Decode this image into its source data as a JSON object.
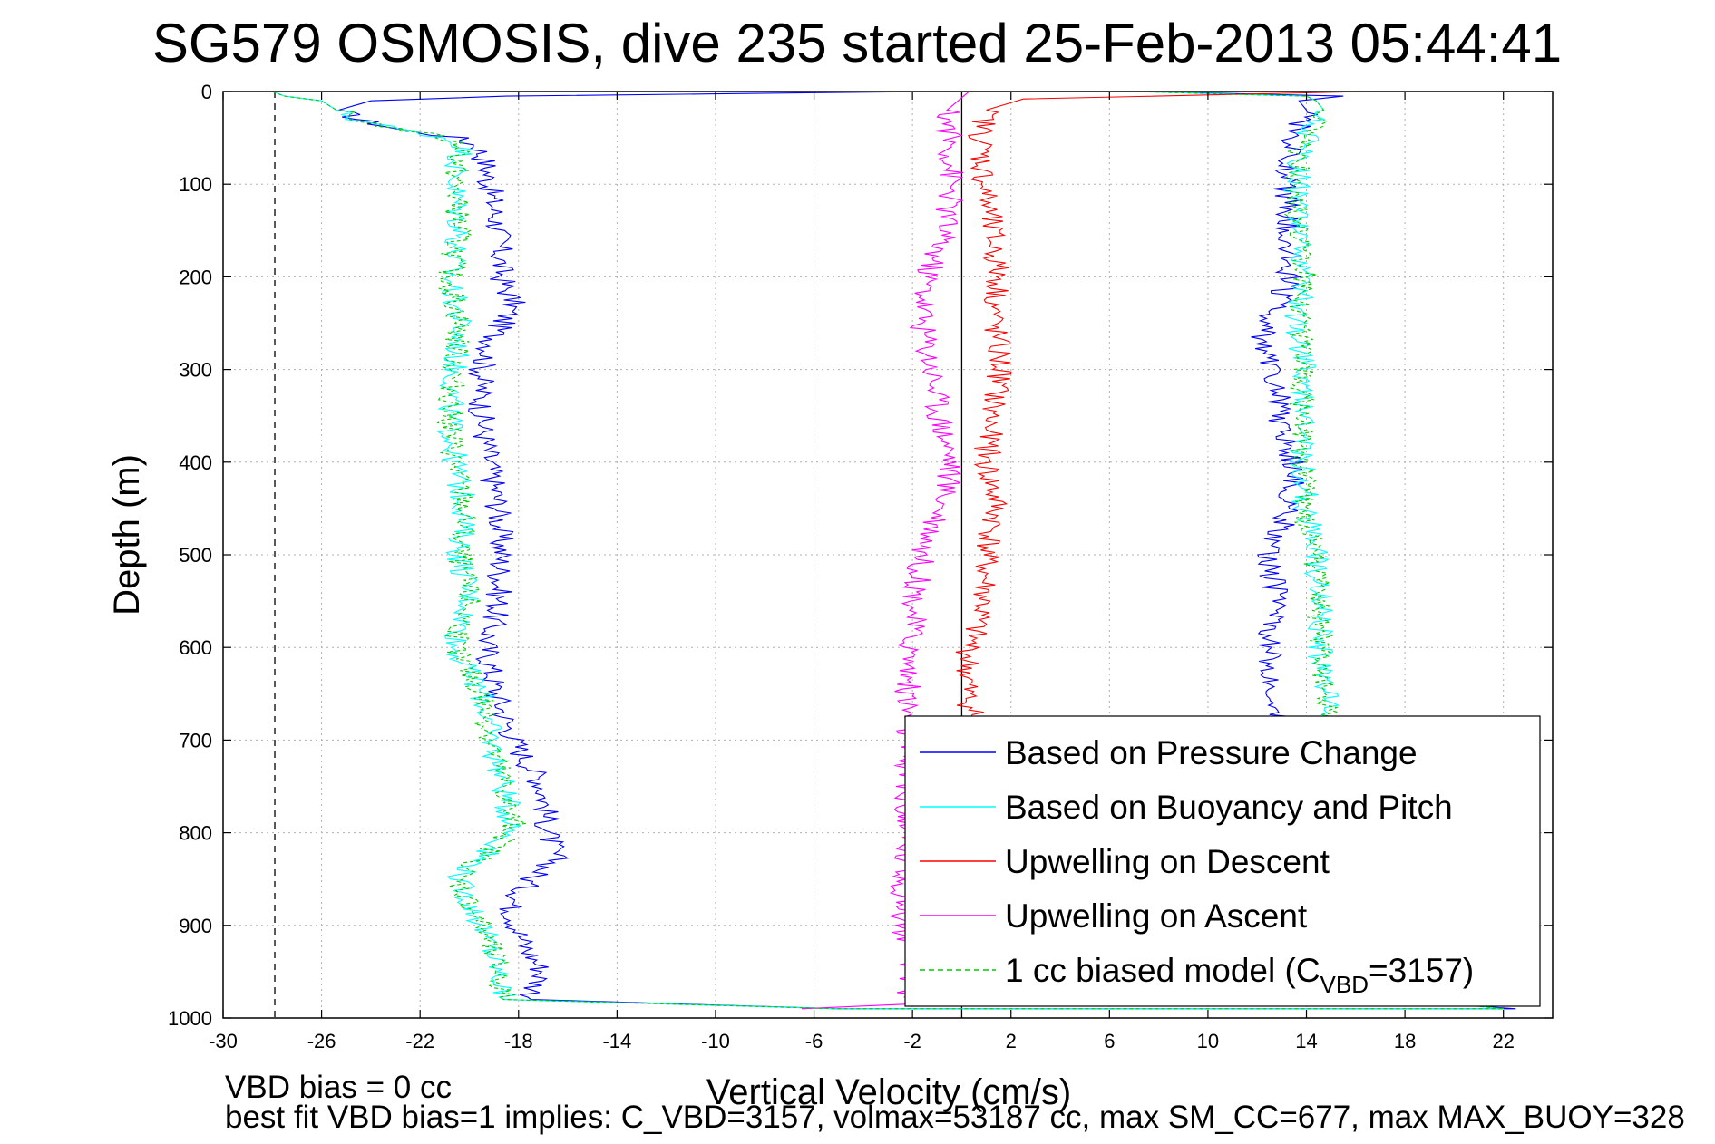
{
  "chart_data": {
    "type": "line",
    "title": "SG579 OSMOSIS, dive 235 started 25-Feb-2013 05:44:41",
    "xlabel": "Vertical Velocity (cm/s)",
    "ylabel": "Depth (m)",
    "xlim": [
      -30,
      24
    ],
    "ylim": [
      0,
      1000
    ],
    "y_reversed": true,
    "grid": true,
    "x_ticks": [
      "-30",
      "-26",
      "-22",
      "-18",
      "-14",
      "-10",
      "-6",
      "-2",
      "2",
      "6",
      "10",
      "14",
      "18",
      "22"
    ],
    "y_ticks": [
      "0",
      "100",
      "200",
      "300",
      "400",
      "500",
      "600",
      "700",
      "800",
      "900",
      "1000"
    ],
    "reference_lines": [
      {
        "x": 0,
        "style": "solid"
      },
      {
        "x": -27.9,
        "style": "dashed"
      }
    ],
    "legend_position": "bottom-right",
    "series": [
      {
        "name": "Based on Pressure Change",
        "color": "#0000ff",
        "depth": [
          0,
          5,
          10,
          20,
          30,
          40,
          50,
          60,
          80,
          100,
          150,
          200,
          230,
          260,
          300,
          350,
          400,
          450,
          500,
          550,
          600,
          650,
          700,
          750,
          800,
          830,
          850,
          880,
          920,
          950,
          980,
          990,
          990,
          980,
          950,
          900,
          850,
          800,
          750,
          700,
          650,
          600,
          550,
          500,
          450,
          400,
          350,
          300,
          270,
          250,
          200,
          150,
          100,
          60,
          40,
          20,
          10,
          5,
          0
        ],
        "velocity": [
          -1.5,
          -18.5,
          -24,
          -25.3,
          -24.5,
          -23,
          -20.5,
          -19.6,
          -19.3,
          -19.2,
          -18.8,
          -18.7,
          -18.2,
          -18.9,
          -19.5,
          -19.5,
          -19.2,
          -18.8,
          -18.7,
          -18.8,
          -19.3,
          -18.9,
          -18.2,
          -17,
          -16.8,
          -16.5,
          -17.5,
          -18.3,
          -17.8,
          -17,
          -17.5,
          -5,
          22.5,
          17,
          13,
          13.3,
          13.2,
          13.4,
          13.3,
          13.2,
          12.8,
          12.5,
          12.8,
          12.5,
          13.3,
          13.5,
          12.9,
          12.7,
          12.2,
          12.4,
          13.3,
          13.2,
          13.2,
          13.3,
          13.7,
          14,
          13.7,
          15.5,
          7.5
        ]
      },
      {
        "name": "Based on Buoyancy and Pitch",
        "color": "#00ffff",
        "depth": [
          0,
          5,
          10,
          20,
          30,
          40,
          50,
          60,
          80,
          100,
          150,
          200,
          250,
          300,
          350,
          400,
          450,
          500,
          550,
          600,
          620,
          650,
          700,
          750,
          780,
          790,
          800,
          850,
          870,
          900,
          950,
          980,
          990,
          990,
          980,
          950,
          900,
          850,
          800,
          750,
          700,
          660,
          600,
          550,
          500,
          470,
          450,
          400,
          350,
          300,
          250,
          200,
          150,
          100,
          60,
          40,
          20,
          10,
          5,
          0
        ],
        "velocity": [
          -28,
          -27.5,
          -26,
          -25.4,
          -24.6,
          -23,
          -21,
          -20.2,
          -20.5,
          -20.6,
          -20.4,
          -20.8,
          -20.4,
          -20.6,
          -20.8,
          -20.6,
          -20.2,
          -20.4,
          -20.0,
          -20.6,
          -20.2,
          -19.5,
          -19.1,
          -18.6,
          -18.4,
          -18.2,
          -18.3,
          -20.5,
          -20.1,
          -19.5,
          -18.8,
          -18.6,
          -5,
          22,
          18,
          15,
          15.1,
          15,
          14.8,
          14.7,
          14.6,
          14.8,
          14.5,
          14.6,
          14.4,
          14.1,
          14,
          13.8,
          13.8,
          13.9,
          13.6,
          13.9,
          13.7,
          13.6,
          13.8,
          14.2,
          14.7,
          14.4,
          14,
          7
        ]
      },
      {
        "name": "Upwelling on Descent",
        "color": "#ff0000",
        "depth": [
          0,
          8,
          20,
          50,
          100,
          150,
          200,
          250,
          300,
          350,
          400,
          450,
          500,
          550,
          600,
          650,
          700
        ],
        "velocity": [
          16.5,
          2.5,
          1.0,
          0.8,
          0.9,
          1.2,
          1.5,
          1.3,
          1.6,
          1.2,
          1.0,
          1.4,
          1.0,
          0.9,
          0.3,
          0.2,
          0.8
        ]
      },
      {
        "name": "Upwelling on Ascent",
        "color": "#ff00ff",
        "depth": [
          0,
          20,
          50,
          100,
          150,
          200,
          250,
          300,
          350,
          400,
          450,
          500,
          550,
          600,
          650,
          900,
          950,
          985,
          990
        ],
        "velocity": [
          0.3,
          -0.6,
          -0.5,
          -0.4,
          -0.7,
          -1.4,
          -1.6,
          -1.2,
          -0.9,
          -0.4,
          -0.8,
          -1.6,
          -1.9,
          -2.1,
          -2.2,
          -2.4,
          -2.0,
          -2.2,
          -6.5
        ]
      },
      {
        "name": "1 cc biased model (C",
        "name_subscript": "VBD",
        "name_suffix": "=3157)",
        "color": "#00cc00",
        "dashed": true,
        "depth": [
          0,
          5,
          10,
          20,
          30,
          40,
          50,
          60,
          80,
          100,
          150,
          200,
          250,
          300,
          350,
          400,
          450,
          500,
          550,
          600,
          620,
          650,
          700,
          750,
          780,
          790,
          800,
          850,
          870,
          900,
          950,
          980,
          990,
          990,
          980,
          950,
          900,
          850,
          800,
          750,
          700,
          660,
          600,
          550,
          500,
          470,
          450,
          400,
          350,
          300,
          250,
          200,
          150,
          100,
          60,
          40,
          20,
          10,
          5,
          0
        ],
        "velocity": [
          -28,
          -27.5,
          -26,
          -25.4,
          -24.6,
          -23,
          -21,
          -20.2,
          -20.5,
          -20.6,
          -20.4,
          -20.8,
          -20.4,
          -20.6,
          -20.8,
          -20.6,
          -20.2,
          -20.4,
          -20.0,
          -20.6,
          -20.2,
          -19.5,
          -19.1,
          -18.6,
          -18.4,
          -18.2,
          -18.3,
          -20.5,
          -20.1,
          -19.5,
          -18.8,
          -18.6,
          -5,
          22,
          18,
          15,
          15.1,
          15,
          14.8,
          14.7,
          14.6,
          14.8,
          14.5,
          14.6,
          14.4,
          14.1,
          14,
          13.8,
          13.8,
          13.9,
          13.6,
          13.9,
          13.7,
          13.6,
          13.8,
          14.2,
          14.7,
          14.4,
          14,
          7
        ]
      }
    ],
    "annotations": [
      "VBD bias = 0 cc",
      "best fit VBD bias=1 implies: C_VBD=3157, volmax=53187 cc, max SM_CC=677, max MAX_BUOY=328"
    ]
  }
}
